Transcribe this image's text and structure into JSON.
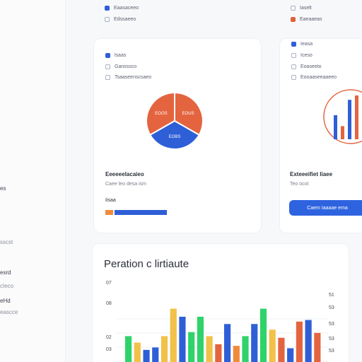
{
  "sidebar": {
    "items": [
      {
        "label": "es",
        "style": "normal"
      },
      {
        "label": "sscst",
        "style": "faint"
      },
      {
        "label": "esrd",
        "style": "normal"
      },
      {
        "label": "cIeco",
        "style": "faint"
      },
      {
        "label": "eHd",
        "style": "normal"
      },
      {
        "label": "eascce",
        "style": "faint"
      }
    ]
  },
  "left_card": {
    "top_rows": [
      {
        "label": "Eaasaceeo",
        "check": "filled"
      },
      {
        "label": "Edssaeeo",
        "check": "empty"
      }
    ],
    "rows": [
      {
        "label": "lsaas",
        "check": "filled"
      },
      {
        "label": "Gansssco",
        "check": "empty"
      },
      {
        "label": "Tsaaseenscsaeo",
        "check": "empty"
      }
    ],
    "pie": {
      "slices": [
        {
          "label": "EOOS",
          "value": 33.3,
          "color": "#e4643f"
        },
        {
          "label": "EOUS",
          "value": 33.3,
          "color": "#e4643f"
        },
        {
          "label": "EOBS",
          "value": 33.4,
          "color": "#2f5fd7"
        }
      ]
    },
    "title": "Eeeeeelacaieo",
    "subtitle": "Caee leo desa ism",
    "progress_label": "Iisaa",
    "progress_value": 0.85,
    "progress_accent": "#f08a3c",
    "progress_color": "#2f5fd7"
  },
  "right_card": {
    "top_rows": [
      {
        "label": "Iaselt",
        "check": "empty"
      },
      {
        "label": "Eaeaaeas",
        "check": "red"
      }
    ],
    "rows": [
      {
        "label": "Ieasa",
        "check": "filled"
      },
      {
        "label": "Iceso",
        "check": "empty"
      },
      {
        "label": "Eoaseeto",
        "check": "empty"
      },
      {
        "label": "Eooaaseeaaeeo",
        "check": "empty"
      }
    ],
    "title": "Exteeeifiet Iiaee",
    "subtitle": "Teo ocot",
    "button_label": "Caem Iaaaae ema"
  },
  "bottom_panel": {
    "title": "Peration c lirtiaute"
  },
  "chart_data": {
    "type": "bar",
    "title": "Peration c lirtiaute",
    "ylabels_left": [
      "07",
      "08",
      "02",
      "03"
    ],
    "ylabels_right": [
      "51",
      "53",
      "53",
      "53",
      "53"
    ],
    "ylim": [
      0,
      70
    ],
    "grid": true,
    "series": [
      {
        "color": "#2fd36a",
        "values": [
          32,
          0,
          0,
          0,
          28,
          0,
          0,
          0,
          0,
          32,
          0,
          0,
          0,
          0,
          0
        ]
      },
      {
        "color": "#f2c149",
        "values": [
          0,
          20,
          0,
          30,
          0,
          0,
          0,
          0,
          0,
          0,
          0,
          0,
          0,
          0,
          0
        ]
      },
      {
        "color": "#2f5fd7",
        "values": [
          0,
          0,
          15,
          0,
          0,
          0,
          0,
          0,
          0,
          0,
          0,
          0,
          0,
          0,
          0
        ]
      }
    ],
    "bars": [
      {
        "value": 32,
        "color": "#2fd36a"
      },
      {
        "value": 24,
        "color": "#f2c149"
      },
      {
        "value": 15,
        "color": "#2f5fd7"
      },
      {
        "value": 18,
        "color": "#2f5fd7"
      },
      {
        "value": 32,
        "color": "#f2c149"
      },
      {
        "value": 66,
        "color": "#f2c149"
      },
      {
        "value": 56,
        "color": "#2f5fd7"
      },
      {
        "value": 37,
        "color": "#2fd36a"
      },
      {
        "value": 56,
        "color": "#2fd36a"
      },
      {
        "value": 32,
        "color": "#f2c149"
      },
      {
        "value": 22,
        "color": "#e4643f"
      },
      {
        "value": 47,
        "color": "#2f5fd7"
      },
      {
        "value": 20,
        "color": "#f08a3c"
      },
      {
        "value": 32,
        "color": "#2fd36a"
      },
      {
        "value": 47,
        "color": "#2f5fd7"
      },
      {
        "value": 66,
        "color": "#2fd36a"
      },
      {
        "value": 40,
        "color": "#f2c149"
      },
      {
        "value": 30,
        "color": "#e4643f"
      },
      {
        "value": 17,
        "color": "#2f5fd7"
      },
      {
        "value": 50,
        "color": "#e4643f"
      },
      {
        "value": 52,
        "color": "#2f5fd7"
      },
      {
        "value": 36,
        "color": "#e4643f"
      }
    ]
  },
  "mini_chart": {
    "bars": [
      {
        "value": 55,
        "color": "#2f5fd7"
      },
      {
        "value": 30,
        "color": "#e4643f"
      },
      {
        "value": 90,
        "color": "#2f5fd7"
      },
      {
        "value": 100,
        "color": "#e4643f"
      }
    ]
  }
}
